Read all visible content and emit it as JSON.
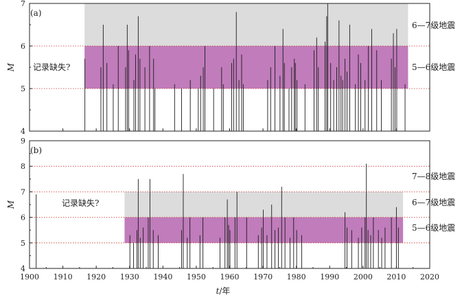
{
  "chart_data": [
    {
      "type": "bar",
      "panel_label": "(a)",
      "xlim": [
        1900,
        2020
      ],
      "ylim": [
        4,
        7
      ],
      "yticks": [
        4,
        5,
        6,
        7
      ],
      "ylabel": "M",
      "grid": "horizontal dotted red lines at integer magnitudes",
      "note": "记录缺失?",
      "bands": [
        {
          "label": "6—7级地震",
          "from": 6,
          "to": 7,
          "x_start": 1916.5,
          "x_end": 2013.5,
          "color": "#dcdcdc"
        },
        {
          "label": "5—6级地震",
          "from": 5,
          "to": 6,
          "x_start": 1916.5,
          "x_end": 2013.5,
          "color": "#c07cbb"
        }
      ],
      "events": [
        {
          "x": 1916.6,
          "m": 5.7
        },
        {
          "x": 1921.4,
          "m": 5.5
        },
        {
          "x": 1922.1,
          "m": 6.5
        },
        {
          "x": 1923.2,
          "m": 5.6
        },
        {
          "x": 1925.1,
          "m": 5.1
        },
        {
          "x": 1926.6,
          "m": 6.0
        },
        {
          "x": 1928.8,
          "m": 5.5
        },
        {
          "x": 1929.3,
          "m": 6.5
        },
        {
          "x": 1929.7,
          "m": 5.9
        },
        {
          "x": 1931.3,
          "m": 5.2
        },
        {
          "x": 1931.8,
          "m": 5.8
        },
        {
          "x": 1932.6,
          "m": 6.7
        },
        {
          "x": 1933.1,
          "m": 5.7
        },
        {
          "x": 1934.6,
          "m": 5.5
        },
        {
          "x": 1936.0,
          "m": 6.0
        },
        {
          "x": 1937.2,
          "m": 5.7
        },
        {
          "x": 1937.6,
          "m": 5.0
        },
        {
          "x": 1943.5,
          "m": 5.1
        },
        {
          "x": 1945.6,
          "m": 5.0
        },
        {
          "x": 1948.2,
          "m": 5.2
        },
        {
          "x": 1950.6,
          "m": 5.0
        },
        {
          "x": 1951.3,
          "m": 5.3
        },
        {
          "x": 1952.1,
          "m": 5.5
        },
        {
          "x": 1952.6,
          "m": 6.0
        },
        {
          "x": 1955.2,
          "m": 5.0
        },
        {
          "x": 1957.6,
          "m": 5.5
        },
        {
          "x": 1958.1,
          "m": 5.1
        },
        {
          "x": 1960.6,
          "m": 5.6
        },
        {
          "x": 1961.2,
          "m": 5.7
        },
        {
          "x": 1962.0,
          "m": 6.8
        },
        {
          "x": 1962.8,
          "m": 5.2
        },
        {
          "x": 1963.6,
          "m": 5.8
        },
        {
          "x": 1964.1,
          "m": 5.1
        },
        {
          "x": 1971.4,
          "m": 5.2
        },
        {
          "x": 1972.3,
          "m": 5.5
        },
        {
          "x": 1973.6,
          "m": 6.0
        },
        {
          "x": 1975.1,
          "m": 5.3
        },
        {
          "x": 1976.0,
          "m": 6.4
        },
        {
          "x": 1976.4,
          "m": 5.6
        },
        {
          "x": 1977.8,
          "m": 5.0
        },
        {
          "x": 1978.6,
          "m": 5.5
        },
        {
          "x": 1979.4,
          "m": 5.7
        },
        {
          "x": 1979.7,
          "m": 5.6
        },
        {
          "x": 1980.2,
          "m": 5.2
        },
        {
          "x": 1982.6,
          "m": 5.1
        },
        {
          "x": 1985.3,
          "m": 5.9
        },
        {
          "x": 1986.1,
          "m": 6.2
        },
        {
          "x": 1986.6,
          "m": 5.5
        },
        {
          "x": 1988.6,
          "m": 6.1
        },
        {
          "x": 1989.1,
          "m": 6.7
        },
        {
          "x": 1989.4,
          "m": 7.0
        },
        {
          "x": 1990.3,
          "m": 5.6
        },
        {
          "x": 1991.2,
          "m": 5.2
        },
        {
          "x": 1992.1,
          "m": 5.5
        },
        {
          "x": 1992.8,
          "m": 6.6
        },
        {
          "x": 1993.4,
          "m": 5.3
        },
        {
          "x": 1993.9,
          "m": 5.2
        },
        {
          "x": 1994.6,
          "m": 5.7
        },
        {
          "x": 1995.2,
          "m": 5.4
        },
        {
          "x": 1996.0,
          "m": 6.5
        },
        {
          "x": 1997.7,
          "m": 5.1
        },
        {
          "x": 1998.6,
          "m": 5.8
        },
        {
          "x": 1999.3,
          "m": 5.6
        },
        {
          "x": 2000.6,
          "m": 5.2
        },
        {
          "x": 2001.6,
          "m": 6.0
        },
        {
          "x": 2002.6,
          "m": 6.4
        },
        {
          "x": 2004.1,
          "m": 5.9
        },
        {
          "x": 2005.5,
          "m": 5.2
        },
        {
          "x": 2008.5,
          "m": 5.7
        },
        {
          "x": 2009.1,
          "m": 6.3
        },
        {
          "x": 2009.6,
          "m": 5.5
        },
        {
          "x": 2010.1,
          "m": 6.4
        },
        {
          "x": 2012.6,
          "m": 5.1
        }
      ]
    },
    {
      "type": "bar",
      "panel_label": "(b)",
      "xlim": [
        1900,
        2020
      ],
      "ylim": [
        4,
        9
      ],
      "yticks": [
        4,
        5,
        6,
        7,
        8,
        9
      ],
      "xticks": [
        1900,
        1910,
        1920,
        1930,
        1940,
        1950,
        1960,
        1970,
        1980,
        1990,
        2000,
        2010,
        2020
      ],
      "ylabel": "M",
      "xlabel_italic": "t",
      "xlabel_rest": "/年",
      "grid": "horizontal dotted red lines at integer magnitudes",
      "note": "记录缺失?",
      "bands": [
        {
          "label": "7—8级地震",
          "from": 7,
          "to": 8,
          "x_start": null,
          "x_end": null,
          "color": ""
        },
        {
          "label": "6—7级地震",
          "from": 6,
          "to": 7,
          "x_start": 1928.5,
          "x_end": 2012.0,
          "color": "#dcdcdc"
        },
        {
          "label": "5—6级地震",
          "from": 5,
          "to": 6,
          "x_start": 1928.5,
          "x_end": 2012.0,
          "color": "#c07cbb"
        }
      ],
      "events": [
        {
          "x": 1902.0,
          "m": 6.9
        },
        {
          "x": 1930.1,
          "m": 5.3
        },
        {
          "x": 1931.2,
          "m": 5.0
        },
        {
          "x": 1932.2,
          "m": 5.5
        },
        {
          "x": 1932.6,
          "m": 7.5
        },
        {
          "x": 1933.2,
          "m": 5.2
        },
        {
          "x": 1934.1,
          "m": 5.6
        },
        {
          "x": 1935.6,
          "m": 6.0
        },
        {
          "x": 1936.1,
          "m": 7.5
        },
        {
          "x": 1937.1,
          "m": 5.5
        },
        {
          "x": 1938.6,
          "m": 5.3
        },
        {
          "x": 1945.6,
          "m": 5.5
        },
        {
          "x": 1946.1,
          "m": 7.7
        },
        {
          "x": 1947.3,
          "m": 5.2
        },
        {
          "x": 1948.1,
          "m": 6.0
        },
        {
          "x": 1951.1,
          "m": 5.3
        },
        {
          "x": 1952.0,
          "m": 6.0
        },
        {
          "x": 1957.1,
          "m": 5.2
        },
        {
          "x": 1958.6,
          "m": 6.0
        },
        {
          "x": 1959.3,
          "m": 6.7
        },
        {
          "x": 1959.7,
          "m": 5.7
        },
        {
          "x": 1960.1,
          "m": 5.5
        },
        {
          "x": 1961.6,
          "m": 6.0
        },
        {
          "x": 1962.2,
          "m": 7.0
        },
        {
          "x": 1965.1,
          "m": 6.0
        },
        {
          "x": 1968.6,
          "m": 5.3
        },
        {
          "x": 1969.6,
          "m": 5.6
        },
        {
          "x": 1970.1,
          "m": 6.3
        },
        {
          "x": 1971.2,
          "m": 5.3
        },
        {
          "x": 1972.6,
          "m": 6.5
        },
        {
          "x": 1973.6,
          "m": 5.5
        },
        {
          "x": 1974.6,
          "m": 5.6
        },
        {
          "x": 1975.6,
          "m": 7.2
        },
        {
          "x": 1976.6,
          "m": 6.0
        },
        {
          "x": 1978.1,
          "m": 5.2
        },
        {
          "x": 1979.2,
          "m": 6.0
        },
        {
          "x": 1980.1,
          "m": 5.5
        },
        {
          "x": 1981.6,
          "m": 5.3
        },
        {
          "x": 1994.6,
          "m": 6.2
        },
        {
          "x": 1995.2,
          "m": 5.6
        },
        {
          "x": 1996.6,
          "m": 5.5
        },
        {
          "x": 1998.6,
          "m": 5.2
        },
        {
          "x": 1999.6,
          "m": 5.6
        },
        {
          "x": 2000.6,
          "m": 6.0
        },
        {
          "x": 2001.0,
          "m": 8.1
        },
        {
          "x": 2001.5,
          "m": 5.5
        },
        {
          "x": 2002.3,
          "m": 5.3
        },
        {
          "x": 2003.1,
          "m": 6.0
        },
        {
          "x": 2004.6,
          "m": 5.5
        },
        {
          "x": 2005.6,
          "m": 5.2
        },
        {
          "x": 2006.6,
          "m": 5.6
        },
        {
          "x": 2008.5,
          "m": 6.0
        },
        {
          "x": 2010.0,
          "m": 6.4
        },
        {
          "x": 2010.6,
          "m": 5.6
        }
      ]
    }
  ]
}
